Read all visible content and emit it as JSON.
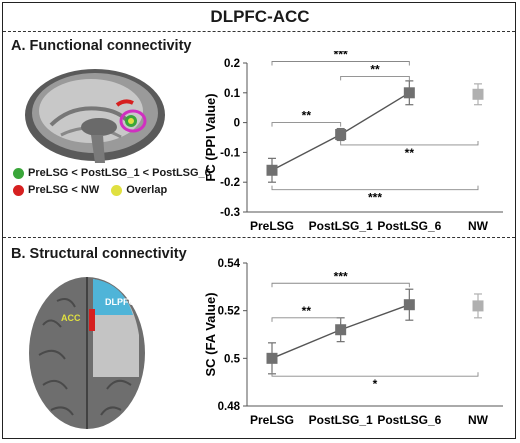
{
  "figure": {
    "title": "DLPFC-ACC"
  },
  "panel_a": {
    "title": "A. Functional connectivity",
    "legend": {
      "green": {
        "label": "PreLSG < PostLSG_1 < PostLSG_6",
        "color": "#3aa63a"
      },
      "red": {
        "label": "PreLSG < NW",
        "color": "#d62020"
      },
      "yellow": {
        "label": "Overlap",
        "color": "#e0e040"
      }
    }
  },
  "panel_b": {
    "title": "B. Structural connectivity",
    "brain_labels": {
      "acc": "ACC",
      "dlpfc": "DLPFC"
    }
  },
  "chart_data": [
    {
      "type": "line",
      "categories": [
        "PreLSG",
        "PostLSG_1",
        "PostLSG_6",
        "NW"
      ],
      "ylabel": "FC (PPI Value)",
      "ylim": [
        -0.3,
        0.2
      ],
      "yticks": [
        -0.3,
        -0.2,
        -0.1,
        0,
        0.1,
        0.2
      ],
      "ytick_labels": [
        "-0.3",
        "-0.2",
        "-0.1",
        "0",
        "0.1",
        "0.2"
      ],
      "values": [
        -0.16,
        -0.04,
        0.1,
        0.095
      ],
      "errors": [
        0.04,
        0.02,
        0.04,
        0.035
      ],
      "connected": [
        true,
        true,
        true,
        false
      ],
      "colors": [
        "#707070",
        "#707070",
        "#707070",
        "#b0b0b0"
      ],
      "significance": [
        {
          "from": 0,
          "to": 1,
          "label": "**",
          "side": "above",
          "y": 0.0
        },
        {
          "from": 1,
          "to": 2,
          "label": "**",
          "side": "above",
          "y": 0.155
        },
        {
          "from": 0,
          "to": 2,
          "label": "***",
          "side": "above",
          "y": 0.205
        },
        {
          "from": 1,
          "to": 3,
          "label": "**",
          "side": "below",
          "y": -0.075
        },
        {
          "from": 0,
          "to": 3,
          "label": "***",
          "side": "below",
          "y": -0.225
        }
      ]
    },
    {
      "type": "line",
      "categories": [
        "PreLSG",
        "PostLSG_1",
        "PostLSG_6",
        "NW"
      ],
      "ylabel": "SC (FA Value)",
      "ylim": [
        0.48,
        0.54
      ],
      "yticks": [
        0.48,
        0.5,
        0.52,
        0.54
      ],
      "ytick_labels": [
        "0.48",
        "0.5",
        "0.52",
        "0.54"
      ],
      "values": [
        0.5,
        0.512,
        0.5225,
        0.522
      ],
      "errors": [
        0.0065,
        0.005,
        0.0065,
        0.005
      ],
      "connected": [
        true,
        true,
        true,
        false
      ],
      "colors": [
        "#707070",
        "#707070",
        "#707070",
        "#b0b0b0"
      ],
      "significance": [
        {
          "from": 0,
          "to": 1,
          "label": "**",
          "side": "above",
          "y": 0.517
        },
        {
          "from": 0,
          "to": 2,
          "label": "***",
          "side": "above",
          "y": 0.5315
        },
        {
          "from": 0,
          "to": 3,
          "label": "*",
          "side": "below",
          "y": 0.4925
        }
      ]
    }
  ]
}
